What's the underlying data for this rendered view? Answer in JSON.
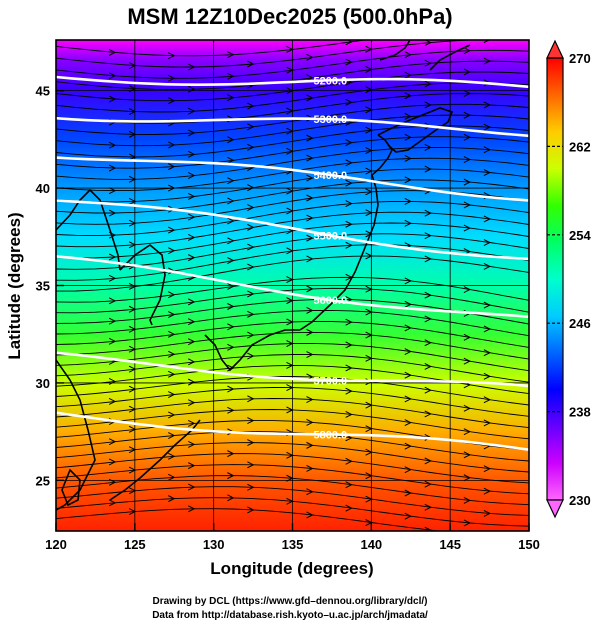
{
  "title": "MSM 12Z10Dec2025 (500.0hPa)",
  "x_axis": {
    "label": "Longitude (degrees)",
    "range": [
      120,
      150
    ],
    "ticks": [
      "120",
      "125",
      "130",
      "135",
      "140",
      "145",
      "150"
    ],
    "tick_values": [
      120,
      125,
      130,
      135,
      140,
      145,
      150
    ]
  },
  "y_axis": {
    "label": "Latitude  (degrees)",
    "range": [
      22.4,
      47.6
    ],
    "ticks": [
      "25",
      "30",
      "35",
      "40",
      "45"
    ],
    "tick_values": [
      25,
      30,
      35,
      40,
      45
    ]
  },
  "colorbar": {
    "range": [
      230,
      270
    ],
    "ticks": [
      "230",
      "238",
      "246",
      "254",
      "262",
      "270"
    ],
    "tick_values": [
      230,
      238,
      246,
      254,
      262,
      270
    ],
    "colors": [
      "#ff66ff",
      "#cc00ff",
      "#6600ff",
      "#0000ff",
      "#0066ff",
      "#00ccff",
      "#00ffcc",
      "#00ff66",
      "#33ff00",
      "#ccff00",
      "#ffcc00",
      "#ff6600",
      "#ff0000"
    ]
  },
  "contours": [
    {
      "label": "5200.0",
      "lat_start": 45.7,
      "lat_end": 45.2
    },
    {
      "label": "5300.0",
      "lat_start": 43.8,
      "lat_end": 42.9
    },
    {
      "label": "5400.0",
      "lat_start": 41.8,
      "lat_end": 39.6
    },
    {
      "label": "5500.0",
      "lat_start": 39.4,
      "lat_end": 36.4
    },
    {
      "label": "5600.0",
      "lat_start": 36.3,
      "lat_end": 33.2
    },
    {
      "label": "5700.0",
      "lat_start": 31.3,
      "lat_end": 29.6
    },
    {
      "label": "5800.0",
      "lat_start": 28.4,
      "lat_end": 26.5
    }
  ],
  "credits": [
    "Drawing by DCL (https://www.gfd–dennou.org/library/dcl/)",
    "Data from http://database.rish.kyoto–u.ac.jp/arch/jmadata/"
  ]
}
